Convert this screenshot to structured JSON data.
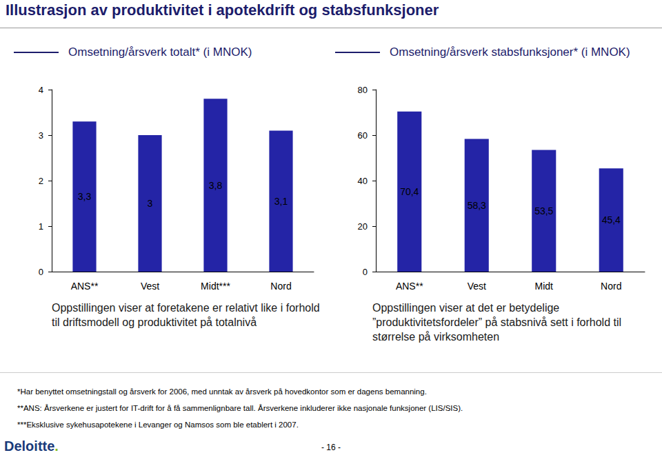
{
  "title": "Illustrasjon av produktivitet i apotekdrift og stabsfunksjoner",
  "chart_data": [
    {
      "type": "bar",
      "title": "Omsetning/årsverk totalt* (i MNOK)",
      "categories": [
        "ANS**",
        "Vest",
        "Midt***",
        "Nord"
      ],
      "values": [
        3.3,
        3,
        3.8,
        3.1
      ],
      "value_labels": [
        "3,3",
        "3",
        "3,8",
        "3,1"
      ],
      "color": "#2424a6",
      "ylim": [
        0,
        4
      ],
      "yticks": [
        0,
        1,
        2,
        3,
        4
      ],
      "grid": false,
      "data_labels": true
    },
    {
      "type": "bar",
      "title": "Omsetning/årsverk stabsfunksjoner* (i MNOK)",
      "categories": [
        "ANS**",
        "Vest",
        "Midt",
        "Nord"
      ],
      "values": [
        70.4,
        58.3,
        53.5,
        45.4
      ],
      "value_labels": [
        "70,4",
        "58,3",
        "53,5",
        "45,4"
      ],
      "color": "#2424a6",
      "ylim": [
        0,
        80
      ],
      "yticks": [
        0,
        20,
        40,
        60,
        80
      ],
      "grid": false,
      "data_labels": true
    }
  ],
  "captions": [
    "Oppstillingen viser at foretakene er relativt like i forhold til driftsmodell og produktivitet på totalnivå",
    "Oppstillingen viser at det er betydelige ”produktivitetsfordeler” på stabsnivå sett i forhold til størrelse på virksomheten"
  ],
  "footnotes": [
    "*Har benyttet omsetningstall og årsverk for 2006, med unntak av årsverk på hovedkontor som er dagens bemanning.",
    "**ANS: Årsverkene er justert for IT-drift for å få sammenlignbare tall. Årsverkene inkluderer ikke nasjonale funksjoner (LIS/SIS).",
    "***Eksklusive sykehusapotekene i Levanger og Namsos som ble etablert i 2007."
  ],
  "logo": "Deloitte.",
  "page": "- 16 -"
}
